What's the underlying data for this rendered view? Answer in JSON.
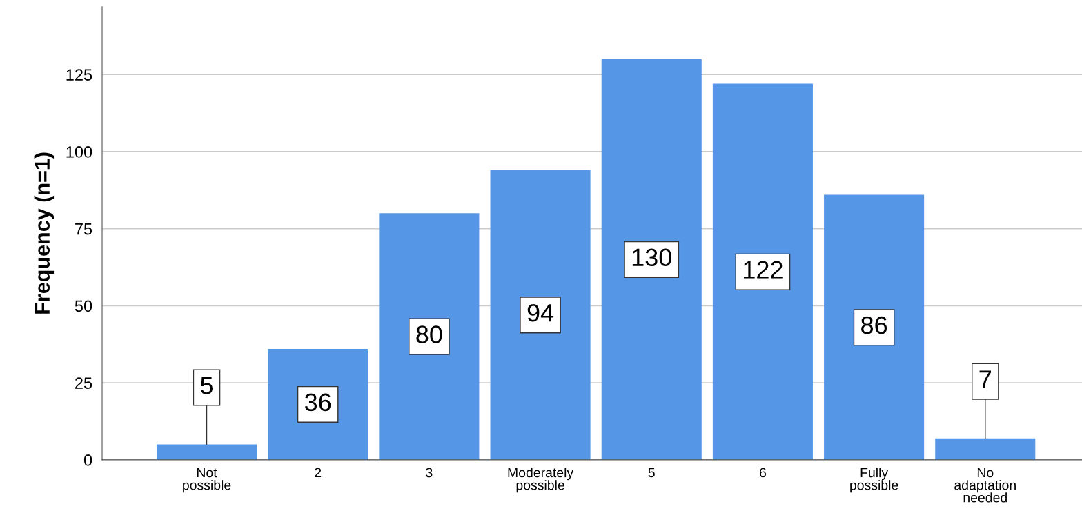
{
  "chart_data": {
    "type": "bar",
    "ylabel": "Frequency (n=1)",
    "categories": [
      "Not\npossible",
      "2",
      "3",
      "Moderately\npossible",
      "5",
      "6",
      "Fully\npossible",
      "No\nadaptation\nneeded"
    ],
    "values": [
      5,
      36,
      80,
      94,
      130,
      122,
      86,
      7
    ],
    "color": "#5596e6",
    "ylim": [
      0,
      147
    ],
    "yticks": [
      0,
      25,
      50,
      75,
      100,
      125
    ],
    "grid": "y",
    "data_labels": true
  }
}
